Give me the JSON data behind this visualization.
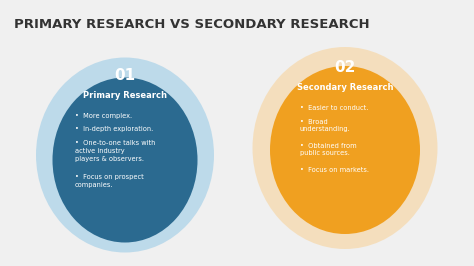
{
  "title": "PRIMARY RESEARCH VS SECONDARY RESEARCH",
  "title_fontsize": 9.5,
  "title_color": "#333333",
  "bg_color": "#f0f0f0",
  "left_num": "01",
  "left_heading": "Primary Research",
  "left_outer_color": "#b8d8ea",
  "left_inner_color": "#2b6a90",
  "left_bullets": [
    "More complex.",
    "In-depth exploration.",
    "One-to-one talks with\nactive industry\nplayers & observers.",
    "Focus on prospect\ncompanies."
  ],
  "right_num": "02",
  "right_heading": "Secondary Research",
  "right_outer_color": "#f5ddb8",
  "right_inner_color": "#f0a020",
  "right_bullets": [
    "Easier to conduct.",
    "Broad\nunderstanding.",
    "Obtained from\npublic sources.",
    "Focus on markets."
  ],
  "text_color": "#ffffff",
  "num_fontsize": 11,
  "heading_fontsize": 6.0,
  "bullet_fontsize": 4.8
}
